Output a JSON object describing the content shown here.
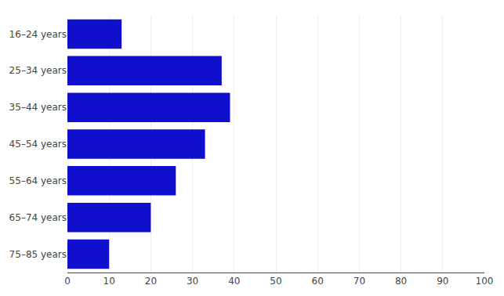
{
  "chart_data": {
    "type": "bar",
    "orientation": "horizontal",
    "categories": [
      "16–24 years",
      "25–34 years",
      "35–44 years",
      "45–54 years",
      "55–64 years",
      "65–74 years",
      "75–85 years"
    ],
    "values": [
      13,
      37,
      39,
      33,
      26,
      20,
      10
    ],
    "color": "#1010cc",
    "xlim": [
      0,
      100
    ],
    "xticks": [
      0,
      10,
      20,
      30,
      40,
      50,
      60,
      70,
      80,
      90,
      100
    ],
    "grid": true
  }
}
